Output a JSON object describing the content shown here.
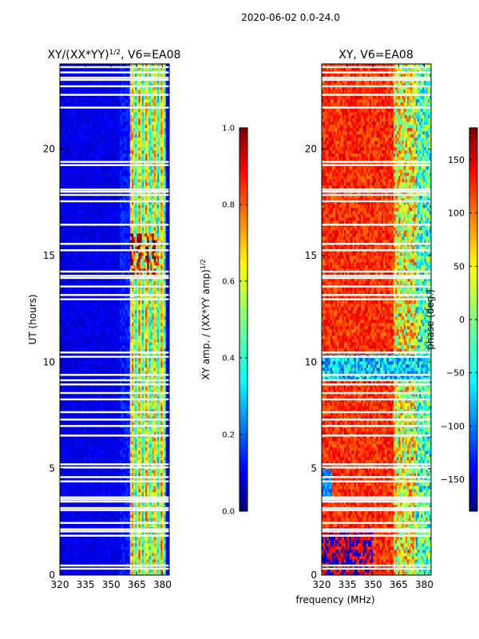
{
  "suptitle": "2020-06-02 0.0-24.0",
  "xlabel": "frequency (MHz)",
  "ylabel": "UT (hours)",
  "colors": {
    "jet": [
      "#00007f",
      "#0000ff",
      "#007fff",
      "#00ffff",
      "#7fff7f",
      "#ffff00",
      "#ff7f00",
      "#ff0000",
      "#7f0000"
    ],
    "background": "#ffffff",
    "flag": "#ffffff"
  },
  "chart_data": [
    {
      "type": "heatmap",
      "id": "amp",
      "title": "XY/(XX*YY)",
      "title_sup": "1/2",
      "title_suffix": ", V6=EA08",
      "xlim": [
        320,
        384
      ],
      "ylim": [
        0,
        24
      ],
      "xticks": [
        320,
        335,
        350,
        365,
        380
      ],
      "yticks": [
        0,
        5,
        10,
        15,
        20
      ],
      "colorbar": {
        "label": "XY amp. / (XX*YY amp)",
        "label_sup": "1/2",
        "range": [
          0.0,
          1.0
        ],
        "ticks": [
          "0.0",
          "0.2",
          "0.4",
          "0.6",
          "0.8",
          "1.0"
        ]
      }
    },
    {
      "type": "heatmap",
      "id": "phase",
      "title": "XY, V6=EA08",
      "xlim": [
        320,
        384
      ],
      "ylim": [
        0,
        24
      ],
      "xticks": [
        320,
        335,
        350,
        365,
        380
      ],
      "yticks": [
        0,
        5,
        10,
        15,
        20
      ],
      "colorbar": {
        "label": "phase (deg.)",
        "range": [
          -180,
          180
        ],
        "ticks": [
          "150",
          "100",
          "50",
          "0",
          "−50",
          "−100",
          "−150"
        ]
      }
    }
  ],
  "flagged_hours": [
    0.3,
    0.45,
    1.85,
    2.05,
    2.15,
    2.45,
    3.05,
    3.15,
    3.45,
    3.55,
    3.65,
    4.4,
    4.6,
    5.05,
    5.2,
    6.55,
    7.0,
    7.3,
    7.65,
    8.25,
    8.55,
    8.95,
    9.15,
    9.4,
    10.25,
    10.45,
    12.95,
    13.15,
    13.55,
    13.95,
    14.05,
    14.25,
    15.25,
    15.55,
    16.45,
    17.55,
    17.85,
    18.0,
    18.1,
    19.25,
    19.4,
    21.95,
    22.55,
    22.95,
    23.25,
    23.35,
    23.6,
    23.85
  ]
}
